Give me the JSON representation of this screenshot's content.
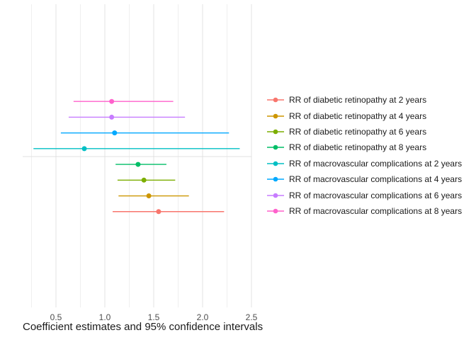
{
  "chart_data": {
    "type": "scatter",
    "subtype": "forest_plot_point_estimates_with_95ci",
    "title": "",
    "xlabel": "Coefficient estimates and 95% confidence intervals",
    "ylabel": "",
    "xlim": [
      0.16,
      2.51
    ],
    "x_tick_values": [
      0.5,
      1.0,
      1.5,
      2.0,
      2.5
    ],
    "x_tick_labels": [
      "0.5",
      "1.0",
      "1.5",
      "2.0",
      "2.5"
    ],
    "x_minor_ticks": [
      0.25,
      0.75,
      1.25,
      1.75,
      2.25
    ],
    "grid": "vertical light-gray major and minor gridlines on white background, no y axis",
    "legend_position": "right",
    "group_divider": "horizontal light-gray line across panel between macrovascular rows (top 4) and retinopathy rows (bottom 4)",
    "series": [
      {
        "name": "RR of diabetic retinopathy at 2 years",
        "color": "#F8766D",
        "estimate": 1.55,
        "ci_low": 1.08,
        "ci_high": 2.22,
        "row_top_to_bottom": 7
      },
      {
        "name": "RR of diabetic retinopathy at 4 years",
        "color": "#CD9600",
        "estimate": 1.45,
        "ci_low": 1.14,
        "ci_high": 1.86,
        "row_top_to_bottom": 6
      },
      {
        "name": "RR of diabetic retinopathy at 6 years",
        "color": "#7CAE00",
        "estimate": 1.4,
        "ci_low": 1.13,
        "ci_high": 1.72,
        "row_top_to_bottom": 5
      },
      {
        "name": "RR of diabetic retinopathy at 8 years",
        "color": "#00BE67",
        "estimate": 1.34,
        "ci_low": 1.11,
        "ci_high": 1.63,
        "row_top_to_bottom": 4
      },
      {
        "name": "RR of macrovascular complications at 2 years",
        "color": "#00BFC4",
        "estimate": 0.79,
        "ci_low": 0.27,
        "ci_high": 2.38,
        "row_top_to_bottom": 3
      },
      {
        "name": "RR of macrovascular complications at 4 years",
        "color": "#00A9FF",
        "estimate": 1.1,
        "ci_low": 0.55,
        "ci_high": 2.27,
        "row_top_to_bottom": 2
      },
      {
        "name": "RR of macrovascular complications at 6 years",
        "color": "#C77CFF",
        "estimate": 1.07,
        "ci_low": 0.63,
        "ci_high": 1.82,
        "row_top_to_bottom": 1
      },
      {
        "name": "RR of macrovascular complications at 8 years",
        "color": "#FF61CC",
        "estimate": 1.07,
        "ci_low": 0.68,
        "ci_high": 1.7,
        "row_top_to_bottom": 0
      }
    ]
  },
  "style": {
    "background": "#ffffff",
    "grid_major_color": "#e3e3e3",
    "grid_minor_color": "#efefef",
    "divider_color": "#e0e0e0",
    "tick_label_color": "#4d4d4d",
    "text_color": "#1a1a1a"
  }
}
